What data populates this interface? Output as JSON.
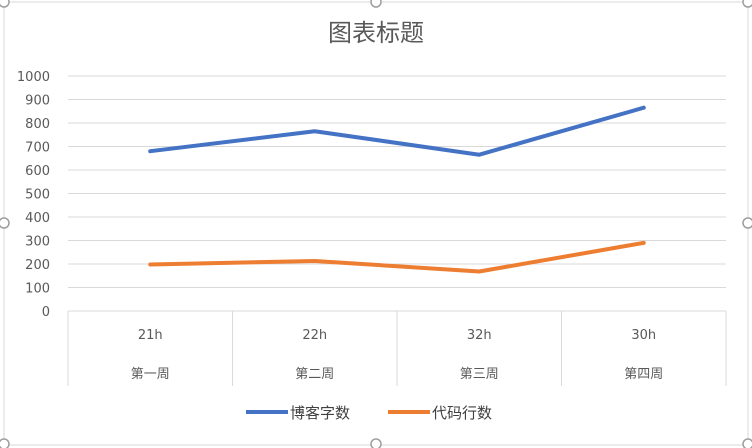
{
  "chart_data": {
    "type": "line",
    "title": "图表标题",
    "categories": [
      {
        "time": "21h",
        "week": "第一周"
      },
      {
        "time": "22h",
        "week": "第二周"
      },
      {
        "time": "32h",
        "week": "第三周"
      },
      {
        "time": "30h",
        "week": "第四周"
      }
    ],
    "series": [
      {
        "name": "博客字数",
        "color": "#4472C4",
        "values": [
          680,
          765,
          665,
          865
        ]
      },
      {
        "name": "代码行数",
        "color": "#ED7D31",
        "values": [
          198,
          213,
          168,
          290
        ]
      }
    ],
    "ylim": [
      0,
      1000
    ],
    "yticks": [
      "0",
      "100",
      "200",
      "300",
      "400",
      "500",
      "600",
      "700",
      "800",
      "900",
      "1000"
    ],
    "grid": true,
    "legend_position": "bottom"
  }
}
